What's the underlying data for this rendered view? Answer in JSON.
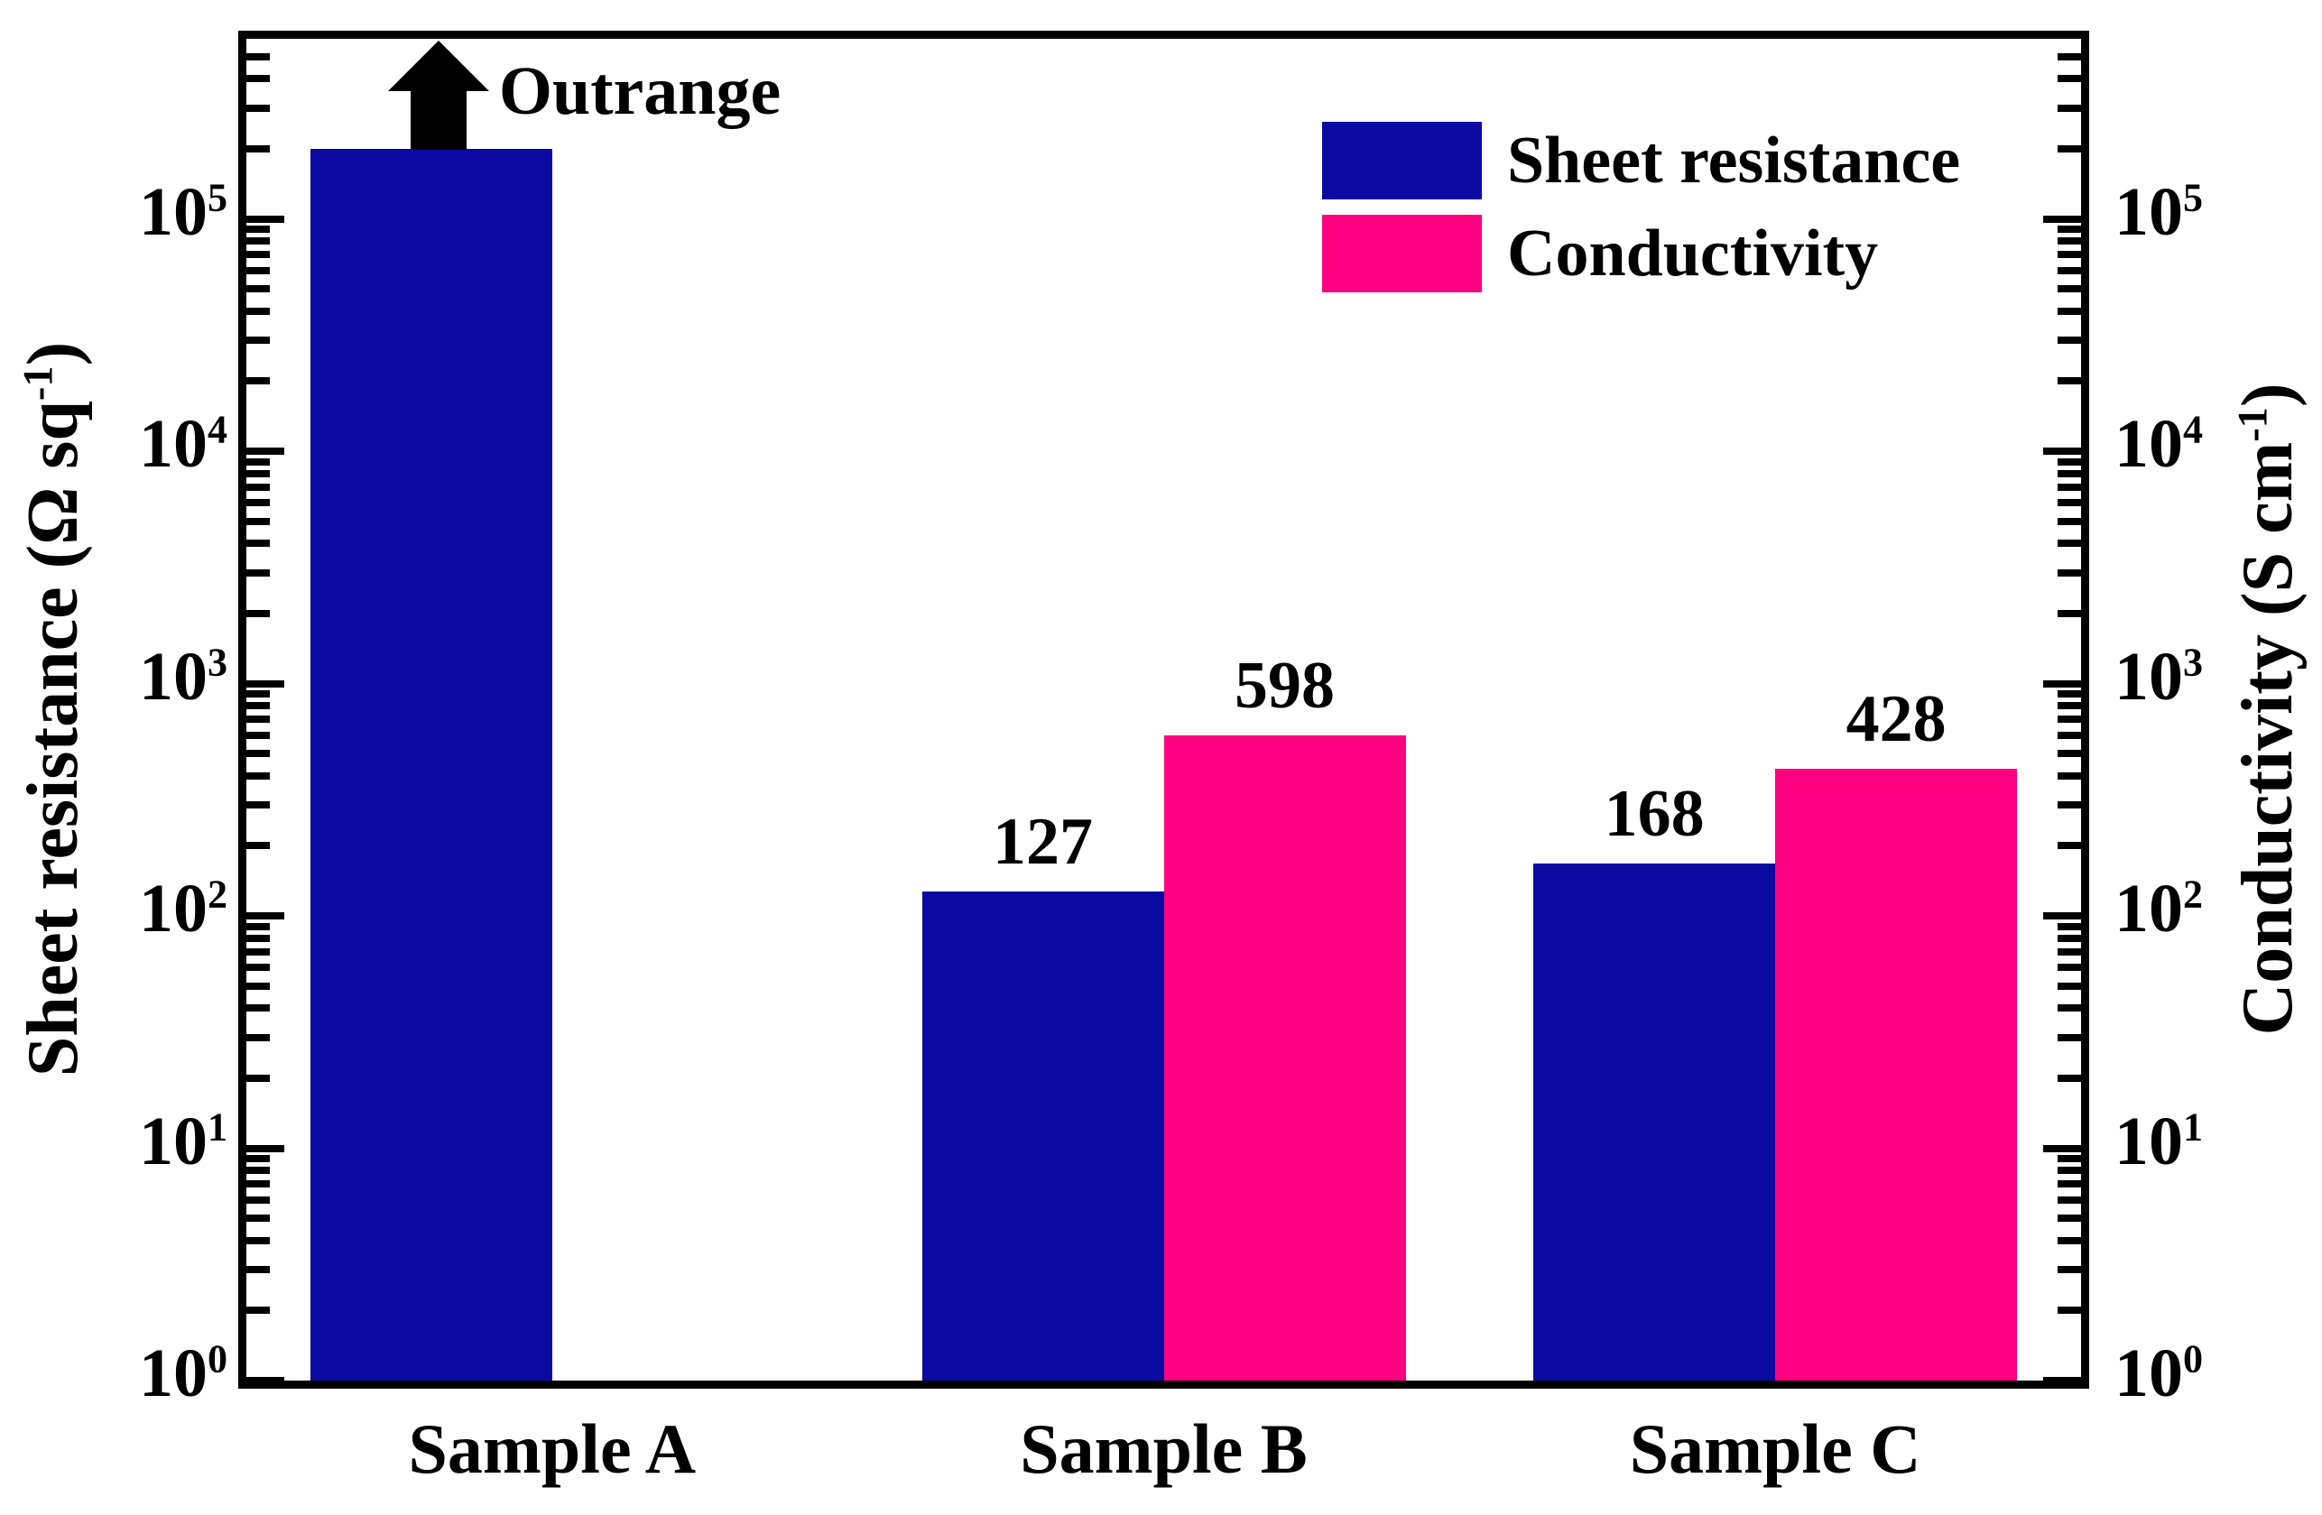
{
  "chart_data": {
    "type": "bar",
    "scale": "log",
    "categories": [
      "Sample A",
      "Sample B",
      "Sample C"
    ],
    "series": [
      {
        "name": "Sheet resistance",
        "color": "#0a0aa2",
        "axis": "left",
        "values": [
          200000,
          127,
          168
        ],
        "value_labels": [
          "",
          "127",
          "168"
        ],
        "outrange": [
          true,
          false,
          false
        ]
      },
      {
        "name": "Conductivity",
        "color": "#ff0080",
        "axis": "right",
        "values": [
          null,
          598,
          428
        ],
        "value_labels": [
          "",
          "598",
          "428"
        ],
        "outrange": [
          false,
          false,
          false
        ]
      }
    ],
    "annotation": {
      "text": "Outrange",
      "category": "Sample A",
      "series": "Sheet resistance"
    },
    "left_axis": {
      "title_pre": "Sheet resistance (Ω sq",
      "title_sup": "-1",
      "title_post": ")",
      "tick_base": "10",
      "tick_exponents": [
        5,
        4,
        3,
        2,
        1,
        0
      ],
      "range_min_exponent": 0,
      "range_max_approx": 600000
    },
    "right_axis": {
      "title_pre": "Conductivity (S cm",
      "title_sup": "-1",
      "title_post": ")",
      "tick_base": "10",
      "tick_exponents": [
        5,
        4,
        3,
        2,
        1,
        0
      ],
      "range_min_exponent": 0,
      "range_max_approx": 600000
    },
    "legend": {
      "items": [
        {
          "label": "Sheet resistance",
          "color": "#0a0aa2"
        },
        {
          "label": "Conductivity",
          "color": "#ff0080"
        }
      ],
      "position": "top-right"
    },
    "grid": false,
    "colors": {
      "axis": "#000000",
      "background": "#ffffff",
      "text": "#000000"
    }
  }
}
